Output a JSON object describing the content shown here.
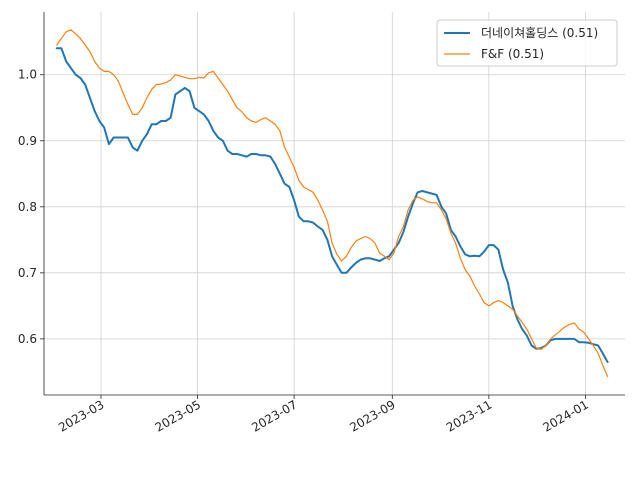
{
  "chart_data": {
    "type": "line",
    "title": "",
    "xlabel": "",
    "ylabel": "",
    "grid": true,
    "legend_position": "top-right",
    "x_range": [
      "2023-01-24",
      "2024-01-26"
    ],
    "y_range": [
      0.515,
      1.095
    ],
    "x_ticks": [
      {
        "date": "2023-03-01",
        "label": "2023-03"
      },
      {
        "date": "2023-05-01",
        "label": "2023-05"
      },
      {
        "date": "2023-07-01",
        "label": "2023-07"
      },
      {
        "date": "2023-09-01",
        "label": "2023-09"
      },
      {
        "date": "2023-11-01",
        "label": "2023-11"
      },
      {
        "date": "2024-01-01",
        "label": "2024-01"
      }
    ],
    "y_ticks": [
      {
        "value": 0.6,
        "label": "0.6"
      },
      {
        "value": 0.7,
        "label": "0.7"
      },
      {
        "value": 0.8,
        "label": "0.8"
      },
      {
        "value": 0.9,
        "label": "0.9"
      },
      {
        "value": 1.0,
        "label": "1.0"
      }
    ],
    "series": [
      {
        "name": "더네이쳐홀딩스 (0.51)",
        "color": "#1f77b4",
        "points": [
          [
            "2023-02-01",
            1.04
          ],
          [
            "2023-02-04",
            1.04
          ],
          [
            "2023-02-07",
            1.02
          ],
          [
            "2023-02-10",
            1.01
          ],
          [
            "2023-02-13",
            1.0
          ],
          [
            "2023-02-16",
            0.995
          ],
          [
            "2023-02-19",
            0.985
          ],
          [
            "2023-02-22",
            0.965
          ],
          [
            "2023-02-25",
            0.945
          ],
          [
            "2023-02-28",
            0.93
          ],
          [
            "2023-03-03",
            0.92
          ],
          [
            "2023-03-06",
            0.895
          ],
          [
            "2023-03-09",
            0.905
          ],
          [
            "2023-03-12",
            0.905
          ],
          [
            "2023-03-15",
            0.905
          ],
          [
            "2023-03-18",
            0.905
          ],
          [
            "2023-03-21",
            0.89
          ],
          [
            "2023-03-24",
            0.885
          ],
          [
            "2023-03-27",
            0.9
          ],
          [
            "2023-03-30",
            0.91
          ],
          [
            "2023-04-02",
            0.925
          ],
          [
            "2023-04-05",
            0.925
          ],
          [
            "2023-04-08",
            0.93
          ],
          [
            "2023-04-11",
            0.93
          ],
          [
            "2023-04-14",
            0.935
          ],
          [
            "2023-04-17",
            0.97
          ],
          [
            "2023-04-20",
            0.975
          ],
          [
            "2023-04-23",
            0.98
          ],
          [
            "2023-04-26",
            0.975
          ],
          [
            "2023-04-29",
            0.95
          ],
          [
            "2023-05-02",
            0.945
          ],
          [
            "2023-05-05",
            0.94
          ],
          [
            "2023-05-08",
            0.93
          ],
          [
            "2023-05-11",
            0.915
          ],
          [
            "2023-05-14",
            0.905
          ],
          [
            "2023-05-17",
            0.9
          ],
          [
            "2023-05-20",
            0.885
          ],
          [
            "2023-05-23",
            0.88
          ],
          [
            "2023-05-26",
            0.88
          ],
          [
            "2023-05-29",
            0.878
          ],
          [
            "2023-06-01",
            0.876
          ],
          [
            "2023-06-04",
            0.88
          ],
          [
            "2023-06-07",
            0.88
          ],
          [
            "2023-06-10",
            0.878
          ],
          [
            "2023-06-13",
            0.878
          ],
          [
            "2023-06-16",
            0.876
          ],
          [
            "2023-06-19",
            0.865
          ],
          [
            "2023-06-22",
            0.85
          ],
          [
            "2023-06-25",
            0.835
          ],
          [
            "2023-06-28",
            0.83
          ],
          [
            "2023-07-01",
            0.81
          ],
          [
            "2023-07-04",
            0.785
          ],
          [
            "2023-07-07",
            0.778
          ],
          [
            "2023-07-10",
            0.778
          ],
          [
            "2023-07-13",
            0.776
          ],
          [
            "2023-07-16",
            0.77
          ],
          [
            "2023-07-19",
            0.765
          ],
          [
            "2023-07-22",
            0.75
          ],
          [
            "2023-07-25",
            0.725
          ],
          [
            "2023-07-28",
            0.712
          ],
          [
            "2023-07-31",
            0.7
          ],
          [
            "2023-08-03",
            0.7
          ],
          [
            "2023-08-06",
            0.708
          ],
          [
            "2023-08-09",
            0.715
          ],
          [
            "2023-08-12",
            0.72
          ],
          [
            "2023-08-15",
            0.722
          ],
          [
            "2023-08-18",
            0.722
          ],
          [
            "2023-08-21",
            0.72
          ],
          [
            "2023-08-24",
            0.718
          ],
          [
            "2023-08-27",
            0.722
          ],
          [
            "2023-08-30",
            0.725
          ],
          [
            "2023-09-02",
            0.735
          ],
          [
            "2023-09-05",
            0.745
          ],
          [
            "2023-09-08",
            0.762
          ],
          [
            "2023-09-11",
            0.785
          ],
          [
            "2023-09-14",
            0.805
          ],
          [
            "2023-09-17",
            0.822
          ],
          [
            "2023-09-20",
            0.824
          ],
          [
            "2023-09-23",
            0.822
          ],
          [
            "2023-09-26",
            0.82
          ],
          [
            "2023-09-29",
            0.818
          ],
          [
            "2023-10-02",
            0.8
          ],
          [
            "2023-10-05",
            0.79
          ],
          [
            "2023-10-08",
            0.765
          ],
          [
            "2023-10-11",
            0.755
          ],
          [
            "2023-10-14",
            0.74
          ],
          [
            "2023-10-17",
            0.728
          ],
          [
            "2023-10-20",
            0.725
          ],
          [
            "2023-10-23",
            0.726
          ],
          [
            "2023-10-26",
            0.725
          ],
          [
            "2023-10-29",
            0.732
          ],
          [
            "2023-11-01",
            0.742
          ],
          [
            "2023-11-04",
            0.742
          ],
          [
            "2023-11-07",
            0.735
          ],
          [
            "2023-11-10",
            0.705
          ],
          [
            "2023-11-13",
            0.685
          ],
          [
            "2023-11-16",
            0.65
          ],
          [
            "2023-11-19",
            0.63
          ],
          [
            "2023-11-22",
            0.615
          ],
          [
            "2023-11-25",
            0.605
          ],
          [
            "2023-11-28",
            0.59
          ],
          [
            "2023-12-01",
            0.585
          ],
          [
            "2023-12-04",
            0.586
          ],
          [
            "2023-12-07",
            0.59
          ],
          [
            "2023-12-10",
            0.598
          ],
          [
            "2023-12-13",
            0.6
          ],
          [
            "2023-12-16",
            0.6
          ],
          [
            "2023-12-19",
            0.6
          ],
          [
            "2023-12-22",
            0.6
          ],
          [
            "2023-12-25",
            0.6
          ],
          [
            "2023-12-28",
            0.595
          ],
          [
            "2023-12-31",
            0.595
          ],
          [
            "2024-01-03",
            0.594
          ],
          [
            "2024-01-06",
            0.592
          ],
          [
            "2024-01-09",
            0.59
          ],
          [
            "2024-01-12",
            0.578
          ],
          [
            "2024-01-15",
            0.565
          ]
        ]
      },
      {
        "name": "F&F (0.51)",
        "color": "#ff7f0e",
        "points": [
          [
            "2023-02-01",
            1.045
          ],
          [
            "2023-02-04",
            1.055
          ],
          [
            "2023-02-07",
            1.065
          ],
          [
            "2023-02-10",
            1.068
          ],
          [
            "2023-02-13",
            1.062
          ],
          [
            "2023-02-16",
            1.055
          ],
          [
            "2023-02-19",
            1.045
          ],
          [
            "2023-02-22",
            1.035
          ],
          [
            "2023-02-25",
            1.02
          ],
          [
            "2023-02-28",
            1.01
          ],
          [
            "2023-03-03",
            1.005
          ],
          [
            "2023-03-06",
            1.005
          ],
          [
            "2023-03-09",
            1.0
          ],
          [
            "2023-03-12",
            0.99
          ],
          [
            "2023-03-15",
            0.972
          ],
          [
            "2023-03-18",
            0.955
          ],
          [
            "2023-03-21",
            0.94
          ],
          [
            "2023-03-24",
            0.94
          ],
          [
            "2023-03-27",
            0.95
          ],
          [
            "2023-03-30",
            0.965
          ],
          [
            "2023-04-02",
            0.978
          ],
          [
            "2023-04-05",
            0.985
          ],
          [
            "2023-04-08",
            0.986
          ],
          [
            "2023-04-11",
            0.988
          ],
          [
            "2023-04-14",
            0.992
          ],
          [
            "2023-04-17",
            1.0
          ],
          [
            "2023-04-20",
            0.998
          ],
          [
            "2023-04-23",
            0.996
          ],
          [
            "2023-04-26",
            0.994
          ],
          [
            "2023-04-29",
            0.994
          ],
          [
            "2023-05-02",
            0.996
          ],
          [
            "2023-05-05",
            0.995
          ],
          [
            "2023-05-08",
            1.003
          ],
          [
            "2023-05-11",
            1.005
          ],
          [
            "2023-05-14",
            0.995
          ],
          [
            "2023-05-17",
            0.985
          ],
          [
            "2023-05-20",
            0.975
          ],
          [
            "2023-05-23",
            0.962
          ],
          [
            "2023-05-26",
            0.95
          ],
          [
            "2023-05-29",
            0.944
          ],
          [
            "2023-06-01",
            0.935
          ],
          [
            "2023-06-04",
            0.93
          ],
          [
            "2023-06-07",
            0.928
          ],
          [
            "2023-06-10",
            0.932
          ],
          [
            "2023-06-13",
            0.935
          ],
          [
            "2023-06-16",
            0.93
          ],
          [
            "2023-06-19",
            0.925
          ],
          [
            "2023-06-22",
            0.915
          ],
          [
            "2023-06-25",
            0.89
          ],
          [
            "2023-06-28",
            0.875
          ],
          [
            "2023-07-01",
            0.86
          ],
          [
            "2023-07-04",
            0.84
          ],
          [
            "2023-07-07",
            0.83
          ],
          [
            "2023-07-10",
            0.826
          ],
          [
            "2023-07-13",
            0.822
          ],
          [
            "2023-07-16",
            0.81
          ],
          [
            "2023-07-19",
            0.795
          ],
          [
            "2023-07-22",
            0.778
          ],
          [
            "2023-07-25",
            0.745
          ],
          [
            "2023-07-28",
            0.728
          ],
          [
            "2023-07-31",
            0.718
          ],
          [
            "2023-08-03",
            0.725
          ],
          [
            "2023-08-06",
            0.738
          ],
          [
            "2023-08-09",
            0.748
          ],
          [
            "2023-08-12",
            0.752
          ],
          [
            "2023-08-15",
            0.755
          ],
          [
            "2023-08-18",
            0.752
          ],
          [
            "2023-08-21",
            0.745
          ],
          [
            "2023-08-24",
            0.73
          ],
          [
            "2023-08-27",
            0.725
          ],
          [
            "2023-08-30",
            0.72
          ],
          [
            "2023-09-02",
            0.73
          ],
          [
            "2023-09-05",
            0.755
          ],
          [
            "2023-09-08",
            0.77
          ],
          [
            "2023-09-11",
            0.795
          ],
          [
            "2023-09-14",
            0.81
          ],
          [
            "2023-09-17",
            0.815
          ],
          [
            "2023-09-20",
            0.812
          ],
          [
            "2023-09-23",
            0.808
          ],
          [
            "2023-09-26",
            0.806
          ],
          [
            "2023-09-29",
            0.806
          ],
          [
            "2023-10-02",
            0.795
          ],
          [
            "2023-10-05",
            0.782
          ],
          [
            "2023-10-08",
            0.76
          ],
          [
            "2023-10-11",
            0.745
          ],
          [
            "2023-10-14",
            0.722
          ],
          [
            "2023-10-17",
            0.705
          ],
          [
            "2023-10-20",
            0.695
          ],
          [
            "2023-10-23",
            0.68
          ],
          [
            "2023-10-26",
            0.668
          ],
          [
            "2023-10-29",
            0.655
          ],
          [
            "2023-11-01",
            0.65
          ],
          [
            "2023-11-04",
            0.655
          ],
          [
            "2023-11-07",
            0.658
          ],
          [
            "2023-11-10",
            0.655
          ],
          [
            "2023-11-13",
            0.65
          ],
          [
            "2023-11-16",
            0.645
          ],
          [
            "2023-11-19",
            0.635
          ],
          [
            "2023-11-22",
            0.625
          ],
          [
            "2023-11-25",
            0.615
          ],
          [
            "2023-11-28",
            0.6
          ],
          [
            "2023-12-01",
            0.586
          ],
          [
            "2023-12-04",
            0.584
          ],
          [
            "2023-12-07",
            0.59
          ],
          [
            "2023-12-10",
            0.6
          ],
          [
            "2023-12-13",
            0.606
          ],
          [
            "2023-12-16",
            0.612
          ],
          [
            "2023-12-19",
            0.618
          ],
          [
            "2023-12-22",
            0.622
          ],
          [
            "2023-12-25",
            0.624
          ],
          [
            "2023-12-28",
            0.615
          ],
          [
            "2023-12-31",
            0.61
          ],
          [
            "2024-01-03",
            0.6
          ],
          [
            "2024-01-06",
            0.59
          ],
          [
            "2024-01-09",
            0.578
          ],
          [
            "2024-01-12",
            0.56
          ],
          [
            "2024-01-15",
            0.543
          ]
        ]
      }
    ]
  }
}
